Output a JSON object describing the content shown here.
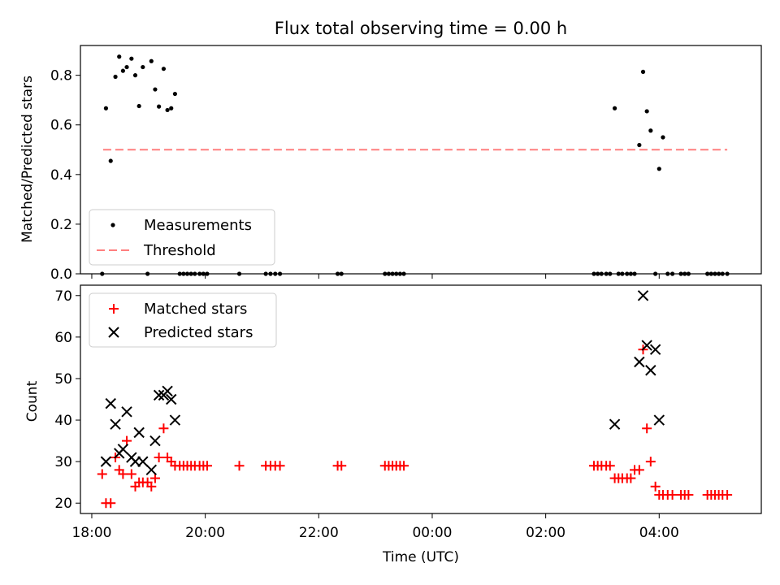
{
  "chart_data": [
    {
      "type": "scatter",
      "title": "Flux total observing time = 0.00 h",
      "xlabel": "",
      "ylabel": "Matched/Predicted stars",
      "ylim": [
        0,
        0.92
      ],
      "xlim": [
        "17:48",
        "05:48"
      ],
      "y_ticks": [
        "0.0",
        "0.2",
        "0.4",
        "0.6",
        "0.8"
      ],
      "legend": {
        "position": "lower-left",
        "entries": [
          "Measurements",
          "Threshold"
        ]
      },
      "colors": {
        "Measurements": "#000000",
        "Threshold": "#ff7f7f"
      },
      "threshold": {
        "name": "Threshold",
        "y": 0.5,
        "x_start": "18:12",
        "x_end": "05:12"
      },
      "series": [
        {
          "name": "Measurements",
          "x": [
            "18:11",
            "18:15",
            "18:20",
            "18:25",
            "18:29",
            "18:33",
            "18:37",
            "18:42",
            "18:46",
            "18:50",
            "18:54",
            "18:59",
            "19:03",
            "19:07",
            "19:11",
            "19:16",
            "19:20",
            "19:24",
            "19:28",
            "19:33",
            "19:37",
            "19:41",
            "19:45",
            "19:49",
            "19:54",
            "19:58",
            "20:02",
            "20:36",
            "21:04",
            "21:09",
            "21:14",
            "21:19",
            "22:20",
            "22:24",
            "23:10",
            "23:14",
            "23:18",
            "23:22",
            "23:26",
            "23:30",
            "02:51",
            "02:55",
            "02:59",
            "03:04",
            "03:08",
            "03:13",
            "03:17",
            "03:21",
            "03:26",
            "03:30",
            "03:34",
            "03:39",
            "03:43",
            "03:47",
            "03:51",
            "03:56",
            "04:00",
            "04:04",
            "04:09",
            "04:14",
            "04:23",
            "04:27",
            "04:31",
            "04:51",
            "04:55",
            "04:59",
            "05:03",
            "05:07",
            "05:12"
          ],
          "y": [
            0,
            0.667,
            0.455,
            0.794,
            0.875,
            0.818,
            0.833,
            0.867,
            0.8,
            0.676,
            0.833,
            0,
            0.857,
            0.743,
            0.674,
            0.826,
            0.66,
            0.667,
            0.725,
            0,
            0,
            0,
            0,
            0,
            0,
            0,
            0,
            0,
            0,
            0,
            0,
            0,
            0,
            0,
            0,
            0,
            0,
            0,
            0,
            0,
            0,
            0,
            0,
            0,
            0,
            0.667,
            0,
            0,
            0,
            0,
            0,
            0.519,
            0.814,
            0.655,
            0.577,
            0,
            0.423,
            0.55,
            0,
            0,
            0,
            0,
            0,
            0,
            0,
            0,
            0,
            0,
            0
          ]
        }
      ]
    },
    {
      "type": "scatter",
      "title": "",
      "xlabel": "Time (UTC)",
      "ylabel": "Count",
      "ylim": [
        17.5,
        72.5
      ],
      "xlim": [
        "17:48",
        "05:48"
      ],
      "x_ticks": [
        "18:00",
        "20:00",
        "22:00",
        "00:00",
        "02:00",
        "04:00"
      ],
      "y_ticks": [
        "20",
        "30",
        "40",
        "50",
        "60",
        "70"
      ],
      "legend": {
        "position": "upper-left",
        "entries": [
          "Matched stars",
          "Predicted stars"
        ]
      },
      "colors": {
        "Matched stars": "#ff0000",
        "Predicted stars": "#000000"
      },
      "series": [
        {
          "name": "Matched stars",
          "x": [
            "18:11",
            "18:15",
            "18:20",
            "18:25",
            "18:29",
            "18:33",
            "18:37",
            "18:42",
            "18:46",
            "18:50",
            "18:54",
            "18:59",
            "19:03",
            "19:07",
            "19:11",
            "19:16",
            "19:20",
            "19:24",
            "19:28",
            "19:33",
            "19:37",
            "19:41",
            "19:45",
            "19:49",
            "19:54",
            "19:58",
            "20:02",
            "20:36",
            "21:04",
            "21:09",
            "21:14",
            "21:19",
            "22:20",
            "22:24",
            "23:10",
            "23:14",
            "23:18",
            "23:22",
            "23:26",
            "23:30",
            "02:51",
            "02:55",
            "02:59",
            "03:04",
            "03:08",
            "03:13",
            "03:17",
            "03:21",
            "03:26",
            "03:30",
            "03:34",
            "03:39",
            "03:43",
            "03:47",
            "03:51",
            "03:56",
            "04:00",
            "04:04",
            "04:09",
            "04:14",
            "04:23",
            "04:27",
            "04:31",
            "04:51",
            "04:55",
            "04:59",
            "05:03",
            "05:07",
            "05:12"
          ],
          "y": [
            27,
            20,
            20,
            31,
            28,
            27,
            35,
            27,
            24,
            25,
            25,
            25,
            24,
            26,
            31,
            38,
            31,
            30,
            29,
            29,
            29,
            29,
            29,
            29,
            29,
            29,
            29,
            29,
            29,
            29,
            29,
            29,
            29,
            29,
            29,
            29,
            29,
            29,
            29,
            29,
            29,
            29,
            29,
            29,
            29,
            26,
            26,
            26,
            26,
            26,
            28,
            28,
            57,
            38,
            30,
            24,
            22,
            22,
            22,
            22,
            22,
            22,
            22,
            22,
            22,
            22,
            22,
            22,
            22
          ]
        },
        {
          "name": "Predicted stars",
          "x": [
            "18:15",
            "18:20",
            "18:25",
            "18:29",
            "18:33",
            "18:37",
            "18:42",
            "18:46",
            "18:50",
            "18:54",
            "19:03",
            "19:07",
            "19:11",
            "19:16",
            "19:20",
            "19:24",
            "19:28",
            "03:13",
            "03:39",
            "03:43",
            "03:47",
            "03:51",
            "03:56",
            "04:00"
          ],
          "y": [
            30,
            44,
            39,
            32,
            33,
            42,
            31,
            30,
            37,
            30,
            28,
            35,
            46,
            46,
            47,
            45,
            40,
            39,
            54,
            70,
            58,
            52,
            57,
            40
          ]
        }
      ]
    }
  ]
}
